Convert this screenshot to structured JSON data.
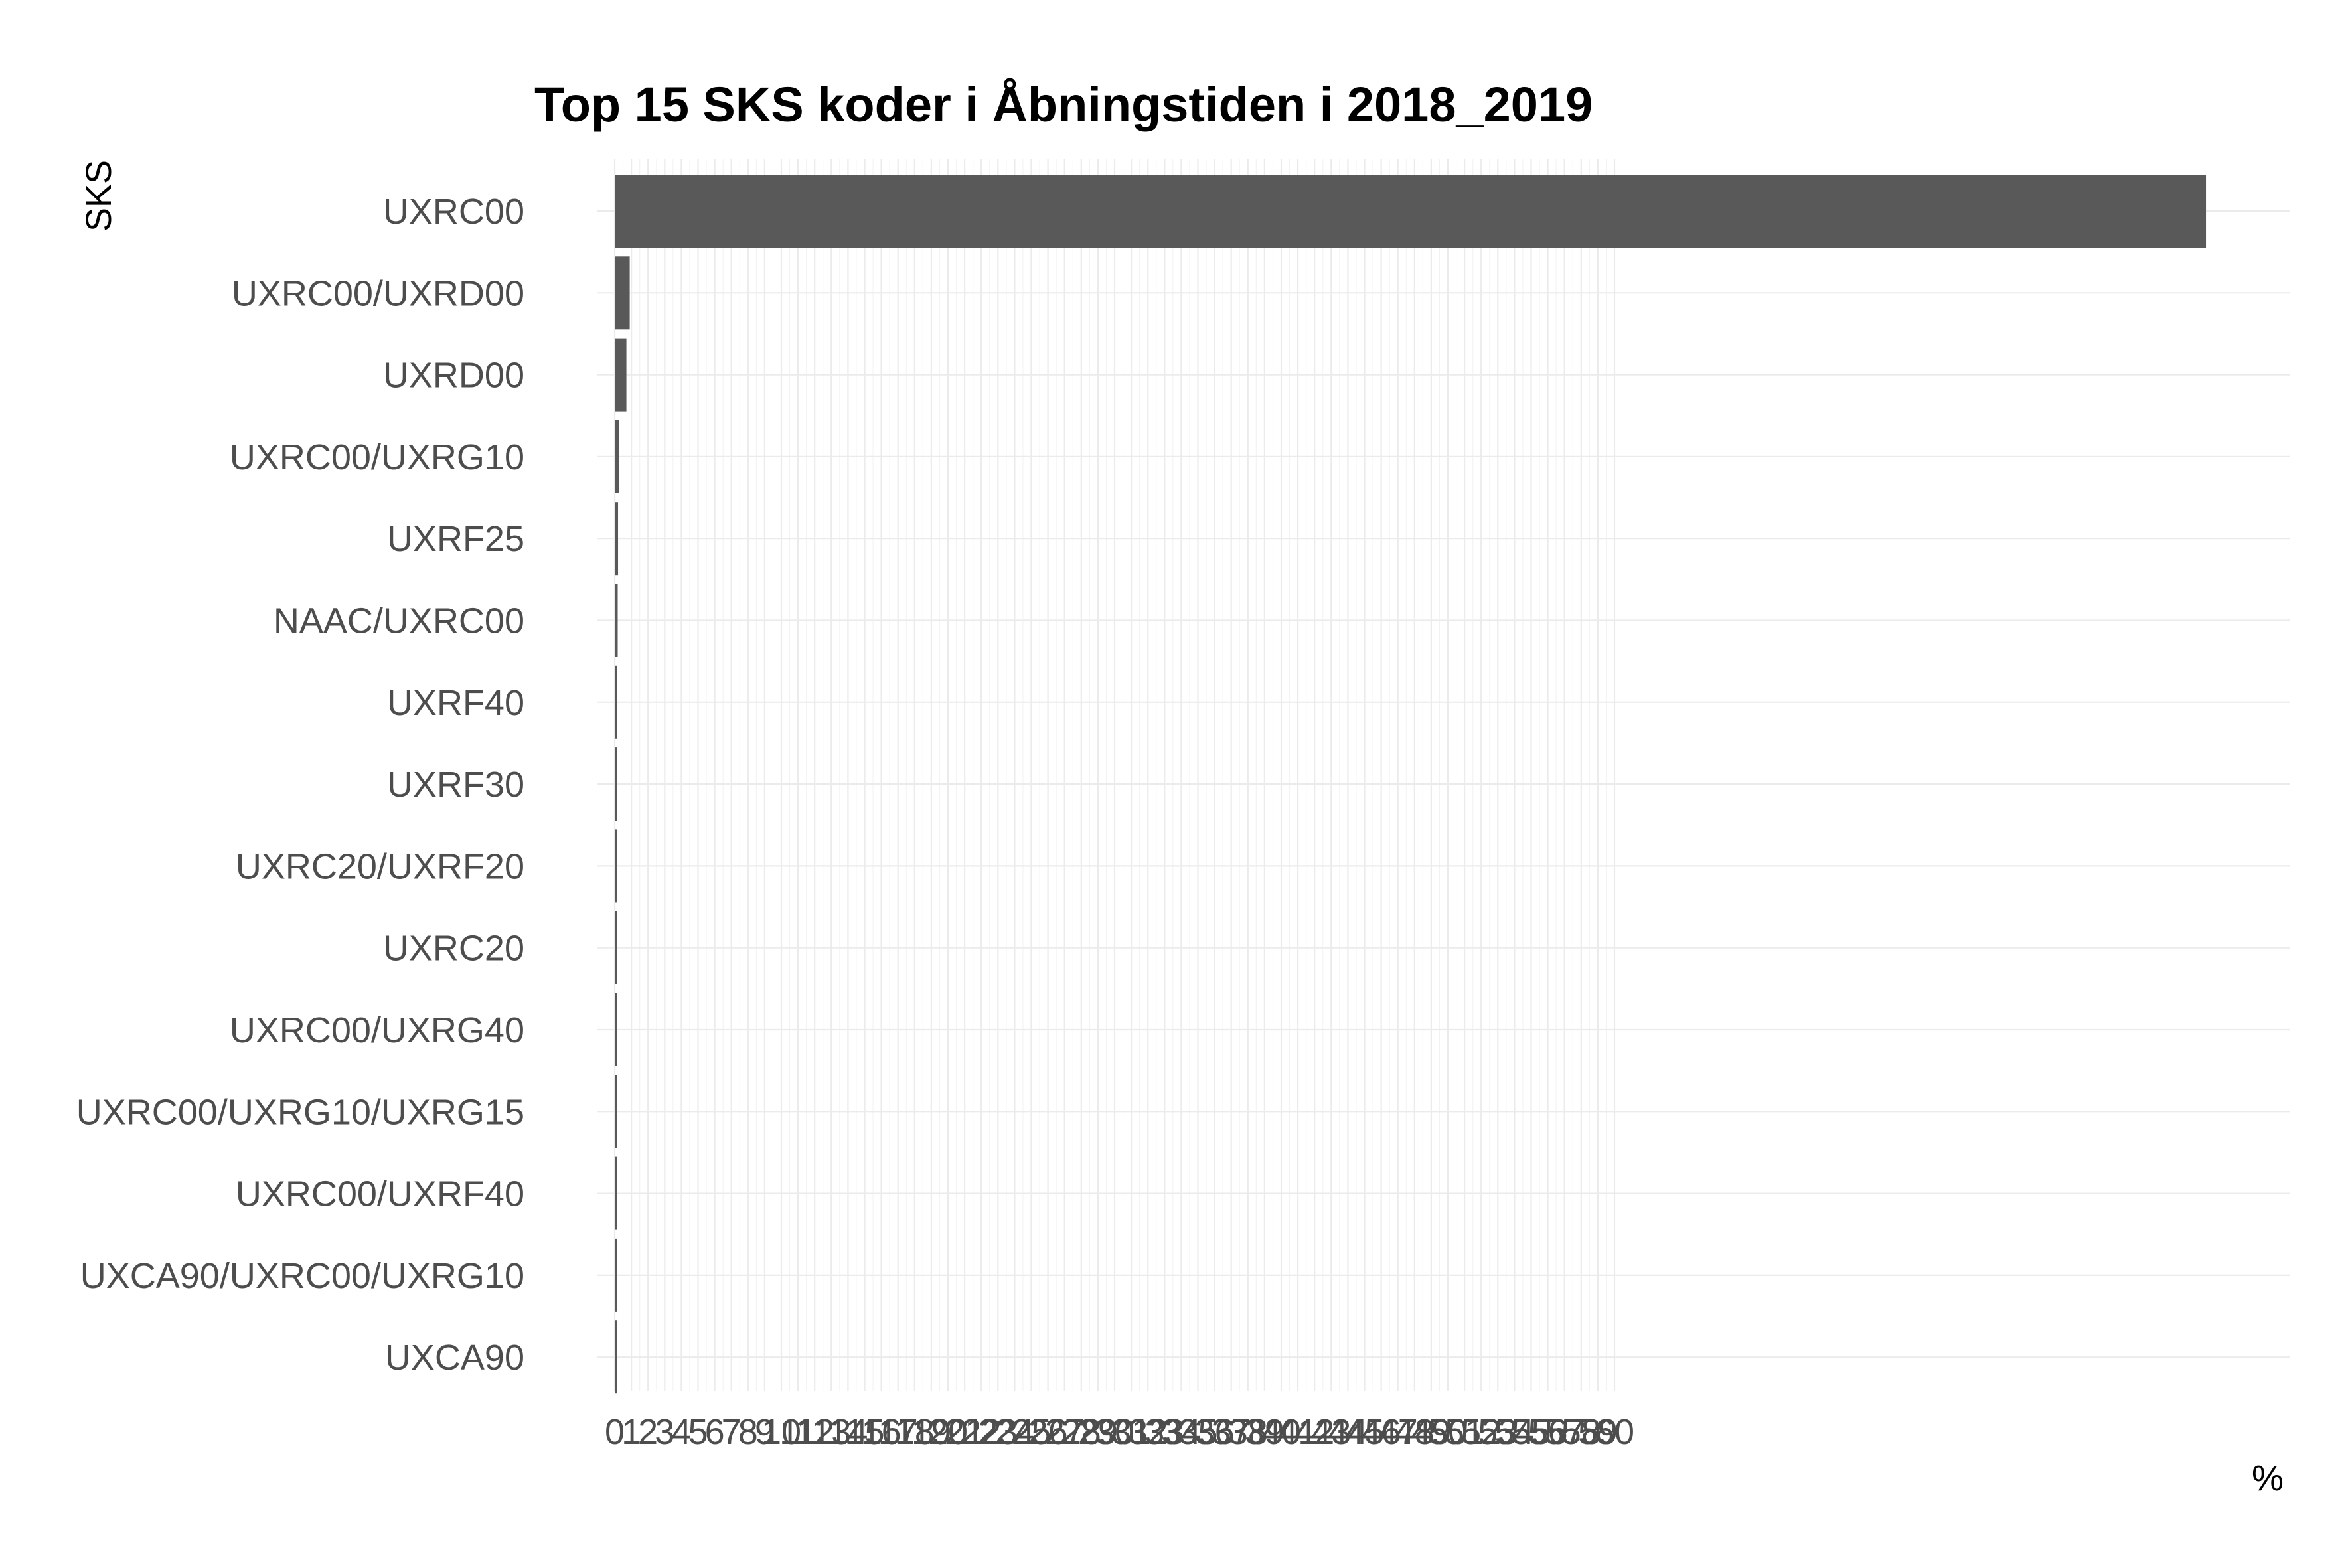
{
  "chart_data": {
    "type": "bar",
    "orientation": "horizontal",
    "title": "Top 15 SKS koder i Åbningstiden i 2018_2019",
    "xlabel": "%",
    "ylabel": "SKS",
    "categories": [
      "UXRC00",
      "UXRC00/UXRD00",
      "UXRD00",
      "UXRC00/UXRG10",
      "UXRF25",
      "NAAC/UXRC00",
      "UXRF40",
      "UXRF30",
      "UXRC20/UXRF20",
      "UXRC20",
      "UXRC00/UXRG40",
      "UXRC00/UXRG10/UXRG15",
      "UXRC00/UXRF40",
      "UXCA90/UXRC00/UXRG10",
      "UXCA90"
    ],
    "values": [
      95.5,
      0.9,
      0.7,
      0.25,
      0.2,
      0.18,
      0.1,
      0.1,
      0.08,
      0.07,
      0.07,
      0.06,
      0.05,
      0.05,
      0.04
    ],
    "x_ticks": [
      "0",
      "1",
      "2",
      "3",
      "4",
      "5",
      "6",
      "7",
      "8",
      "9",
      "10",
      "11",
      "12",
      "13",
      "14",
      "15",
      "16",
      "17",
      "18",
      "19",
      "20",
      "21",
      "22",
      "23",
      "24",
      "25",
      "26",
      "27",
      "28",
      "29",
      "30",
      "31",
      "32",
      "33",
      "34",
      "35",
      "36",
      "37",
      "38",
      "39",
      "40",
      "41",
      "42",
      "43",
      "44",
      "45",
      "46",
      "47",
      "48",
      "49",
      "50",
      "51",
      "52",
      "53",
      "54",
      "55",
      "56",
      "57",
      "58",
      "59",
      "60"
    ],
    "xlim": [
      0,
      100
    ],
    "tick_range": [
      0,
      60
    ],
    "grid": true,
    "legend": "none",
    "bar_color": "#595959",
    "grid_color": "#ebebeb"
  }
}
